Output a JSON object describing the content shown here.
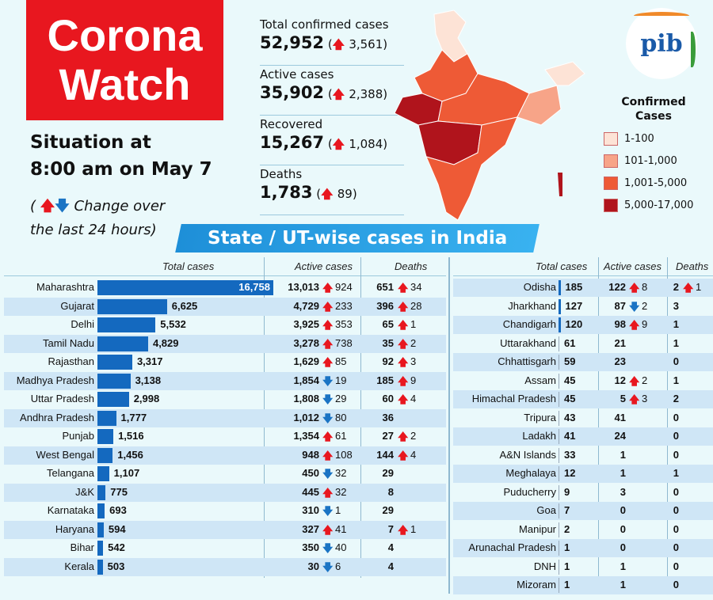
{
  "header": {
    "title_line1": "Corona",
    "title_line2": "Watch",
    "situation_line1": "Situation at",
    "situation_line2": "8:00 am on May 7",
    "change_note_prefix": "(",
    "change_note_text": "Change over",
    "change_note_line2": "the last 24 hours)"
  },
  "stats": [
    {
      "label": "Total confirmed cases",
      "value": "52,952",
      "change": "3,561"
    },
    {
      "label": "Active cases",
      "value": "35,902",
      "change": "2,388"
    },
    {
      "label": "Recovered",
      "value": "15,267",
      "change": "1,084"
    },
    {
      "label": "Deaths",
      "value": "1,783",
      "change": "89"
    }
  ],
  "legend": {
    "title": "Confirmed Cases",
    "items": [
      {
        "label": "1-100",
        "color": "#fde3d6"
      },
      {
        "label": "101-1,000",
        "color": "#f7a488"
      },
      {
        "label": "1,001-5,000",
        "color": "#ee5a36"
      },
      {
        "label": "5,000-17,000",
        "color": "#b0141c"
      }
    ]
  },
  "logo": {
    "text": "pib"
  },
  "banner": "State / UT-wise cases in India",
  "columns": {
    "total": "Total cases",
    "active": "Active cases",
    "deaths": "Deaths"
  },
  "colors": {
    "bar": "#1469bf",
    "up": "#e8171f",
    "down": "#1a74c4",
    "title_bg": "#e8171f"
  },
  "chart_data": {
    "type": "bar",
    "orientation": "horizontal",
    "xlabel": "Total cases",
    "categories": [
      "Maharashtra",
      "Gujarat",
      "Delhi",
      "Tamil Nadu",
      "Rajasthan",
      "Madhya Pradesh",
      "Uttar Pradesh",
      "Andhra Pradesh",
      "Punjab",
      "West Bengal",
      "Telangana",
      "J&K",
      "Karnataka",
      "Haryana",
      "Bihar",
      "Kerala",
      "Odisha",
      "Jharkhand",
      "Chandigarh",
      "Uttarakhand",
      "Chhattisgarh",
      "Assam",
      "Himachal Pradesh",
      "Tripura",
      "Ladakh",
      "A&N Islands",
      "Meghalaya",
      "Puducherry",
      "Goa",
      "Manipur",
      "Arunachal Pradesh",
      "DNH",
      "Mizoram"
    ],
    "values": [
      16758,
      6625,
      5532,
      4829,
      3317,
      3138,
      2998,
      1777,
      1516,
      1456,
      1107,
      775,
      693,
      594,
      542,
      503,
      185,
      127,
      120,
      61,
      59,
      45,
      45,
      43,
      41,
      33,
      12,
      9,
      7,
      2,
      1,
      1,
      1
    ],
    "labels": [
      "16,758",
      "6,625",
      "5,532",
      "4,829",
      "3,317",
      "3,138",
      "2,998",
      "1,777",
      "1,516",
      "1,456",
      "1,107",
      "775",
      "693",
      "594",
      "542",
      "503",
      "185",
      "127",
      "120",
      "61",
      "59",
      "45",
      "45",
      "43",
      "41",
      "33",
      "12",
      "9",
      "7",
      "2",
      "1",
      "1",
      "1"
    ]
  },
  "rows": [
    {
      "active": "13,013",
      "a_dir": "up",
      "a_ch": "924",
      "deaths": "651",
      "d_dir": "up",
      "d_ch": "34"
    },
    {
      "active": "4,729",
      "a_dir": "up",
      "a_ch": "233",
      "deaths": "396",
      "d_dir": "up",
      "d_ch": "28"
    },
    {
      "active": "3,925",
      "a_dir": "up",
      "a_ch": "353",
      "deaths": "65",
      "d_dir": "up",
      "d_ch": "1"
    },
    {
      "active": "3,278",
      "a_dir": "up",
      "a_ch": "738",
      "deaths": "35",
      "d_dir": "up",
      "d_ch": "2"
    },
    {
      "active": "1,629",
      "a_dir": "up",
      "a_ch": "85",
      "deaths": "92",
      "d_dir": "up",
      "d_ch": "3"
    },
    {
      "active": "1,854",
      "a_dir": "down",
      "a_ch": "19",
      "deaths": "185",
      "d_dir": "up",
      "d_ch": "9"
    },
    {
      "active": "1,808",
      "a_dir": "down",
      "a_ch": "29",
      "deaths": "60",
      "d_dir": "up",
      "d_ch": "4"
    },
    {
      "active": "1,012",
      "a_dir": "down",
      "a_ch": "80",
      "deaths": "36"
    },
    {
      "active": "1,354",
      "a_dir": "up",
      "a_ch": "61",
      "deaths": "27",
      "d_dir": "up",
      "d_ch": "2"
    },
    {
      "active": "948",
      "a_dir": "up",
      "a_ch": "108",
      "deaths": "144",
      "d_dir": "up",
      "d_ch": "4"
    },
    {
      "active": "450",
      "a_dir": "down",
      "a_ch": "32",
      "deaths": "29"
    },
    {
      "active": "445",
      "a_dir": "up",
      "a_ch": "32",
      "deaths": "8"
    },
    {
      "active": "310",
      "a_dir": "down",
      "a_ch": "1",
      "deaths": "29"
    },
    {
      "active": "327",
      "a_dir": "up",
      "a_ch": "41",
      "deaths": "7",
      "d_dir": "up",
      "d_ch": "1"
    },
    {
      "active": "350",
      "a_dir": "down",
      "a_ch": "40",
      "deaths": "4"
    },
    {
      "active": "30",
      "a_dir": "down",
      "a_ch": "6",
      "deaths": "4"
    },
    {
      "active": "122",
      "a_dir": "up",
      "a_ch": "8",
      "deaths": "2",
      "d_dir": "up",
      "d_ch": "1"
    },
    {
      "active": "87",
      "a_dir": "down",
      "a_ch": "2",
      "deaths": "3"
    },
    {
      "active": "98",
      "a_dir": "up",
      "a_ch": "9",
      "deaths": "1"
    },
    {
      "active": "21",
      "deaths": "1"
    },
    {
      "active": "23",
      "deaths": "0"
    },
    {
      "active": "12",
      "a_dir": "up",
      "a_ch": "2",
      "deaths": "1"
    },
    {
      "active": "5",
      "a_dir": "up",
      "a_ch": "3",
      "deaths": "2"
    },
    {
      "active": "41",
      "deaths": "0"
    },
    {
      "active": "24",
      "deaths": "0"
    },
    {
      "active": "1",
      "deaths": "0"
    },
    {
      "active": "1",
      "deaths": "1"
    },
    {
      "active": "3",
      "deaths": "0"
    },
    {
      "active": "0",
      "deaths": "0"
    },
    {
      "active": "0",
      "deaths": "0"
    },
    {
      "active": "0",
      "deaths": "0"
    },
    {
      "active": "1",
      "deaths": "0"
    },
    {
      "active": "1",
      "deaths": "0"
    }
  ]
}
